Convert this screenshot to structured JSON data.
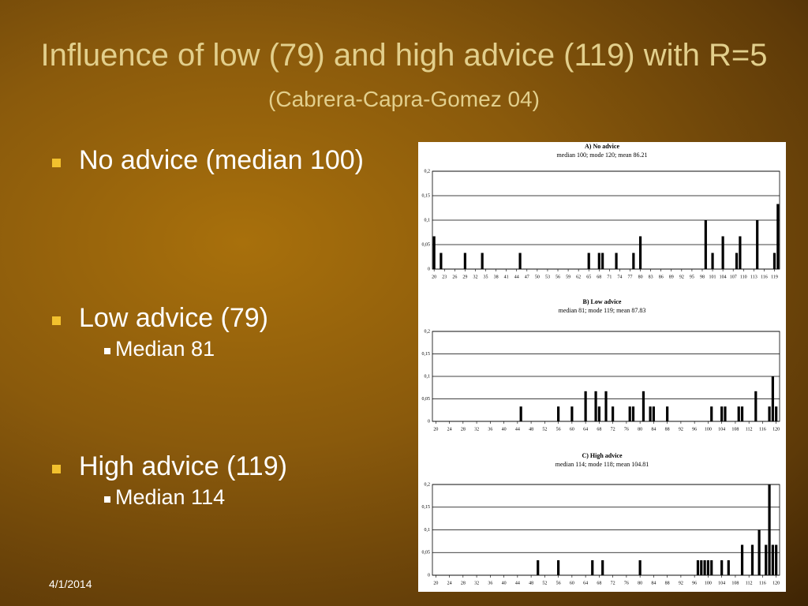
{
  "title": "Influence of low (79) and high advice (119) with R=5",
  "title_note": "(Cabrera-Capra-Gomez 04)",
  "bullets": [
    {
      "text": "No advice (median 100)"
    },
    {
      "text": "Low advice (79)",
      "sub": "Median 81"
    },
    {
      "text": "High advice (119)",
      "sub": "Median 114"
    }
  ],
  "date": "4/1/2014",
  "chart_data": [
    {
      "type": "bar",
      "title": "A) No advice",
      "subtitle": "median 100; mode 120; mean 86.21",
      "color": "#000000",
      "grid": true,
      "x": [
        20,
        22,
        29,
        34,
        45,
        65,
        68,
        69,
        73,
        78,
        80,
        99,
        101,
        104,
        108,
        109,
        114,
        119,
        120
      ],
      "values": [
        0.067,
        0.033,
        0.033,
        0.033,
        0.033,
        0.033,
        0.033,
        0.033,
        0.033,
        0.033,
        0.067,
        0.1,
        0.033,
        0.067,
        0.033,
        0.067,
        0.1,
        0.033,
        0.133
      ],
      "xlim": [
        19.5,
        120.5
      ],
      "xticks": [
        20,
        23,
        26,
        29,
        32,
        35,
        38,
        41,
        44,
        47,
        50,
        53,
        56,
        59,
        62,
        65,
        68,
        71,
        74,
        77,
        80,
        83,
        86,
        89,
        92,
        95,
        98,
        101,
        104,
        107,
        110,
        113,
        116,
        119
      ],
      "ylim": [
        0,
        0.2
      ],
      "yticks": [
        {
          "value": 0,
          "label": "0"
        },
        {
          "value": 0.05,
          "label": "0,05"
        },
        {
          "value": 0.1,
          "label": "0,1"
        },
        {
          "value": 0.15,
          "label": "0,15"
        },
        {
          "value": 0.2,
          "label": "0,2"
        }
      ]
    },
    {
      "type": "bar",
      "title": "B) Low advice",
      "subtitle": "median 81; mode 119; mean 87.83",
      "color": "#000000",
      "grid": true,
      "x": [
        45,
        56,
        60,
        64,
        67,
        68,
        70,
        72,
        77,
        78,
        81,
        83,
        84,
        88,
        101,
        104,
        105,
        109,
        110,
        114,
        118,
        119,
        120
      ],
      "values": [
        0.033,
        0.033,
        0.033,
        0.067,
        0.067,
        0.033,
        0.067,
        0.033,
        0.033,
        0.033,
        0.067,
        0.033,
        0.033,
        0.033,
        0.033,
        0.033,
        0.033,
        0.033,
        0.033,
        0.067,
        0.033,
        0.1,
        0.033
      ],
      "xlim": [
        19,
        121
      ],
      "xticks": [
        20,
        24,
        28,
        32,
        36,
        40,
        44,
        48,
        52,
        56,
        60,
        64,
        68,
        72,
        76,
        80,
        84,
        88,
        92,
        96,
        100,
        104,
        108,
        112,
        116,
        120
      ],
      "ylim": [
        0,
        0.2
      ],
      "yticks": [
        {
          "value": 0,
          "label": "0"
        },
        {
          "value": 0.05,
          "label": "0,05"
        },
        {
          "value": 0.1,
          "label": "0,1"
        },
        {
          "value": 0.15,
          "label": "0,15"
        },
        {
          "value": 0.2,
          "label": "0,2"
        }
      ]
    },
    {
      "type": "bar",
      "title": "C) High advice",
      "subtitle": "median 114; mode 118; mean 104.81",
      "color": "#000000",
      "grid": true,
      "x": [
        50,
        56,
        66,
        69,
        80,
        97,
        98,
        99,
        100,
        101,
        104,
        106,
        110,
        113,
        115,
        117,
        118,
        119,
        120
      ],
      "values": [
        0.033,
        0.033,
        0.033,
        0.033,
        0.033,
        0.033,
        0.033,
        0.033,
        0.033,
        0.033,
        0.033,
        0.033,
        0.067,
        0.067,
        0.1,
        0.067,
        0.2,
        0.067,
        0.067
      ],
      "xlim": [
        19,
        121
      ],
      "xticks": [
        20,
        24,
        28,
        32,
        36,
        40,
        44,
        48,
        52,
        56,
        60,
        64,
        68,
        72,
        76,
        80,
        84,
        88,
        92,
        96,
        100,
        104,
        108,
        112,
        116,
        120
      ],
      "ylim": [
        0,
        0.2
      ],
      "yticks": [
        {
          "value": 0,
          "label": "0"
        },
        {
          "value": 0.05,
          "label": "0,05"
        },
        {
          "value": 0.1,
          "label": "0,1"
        },
        {
          "value": 0.15,
          "label": "0,15"
        },
        {
          "value": 0.2,
          "label": "0,2"
        }
      ]
    }
  ]
}
